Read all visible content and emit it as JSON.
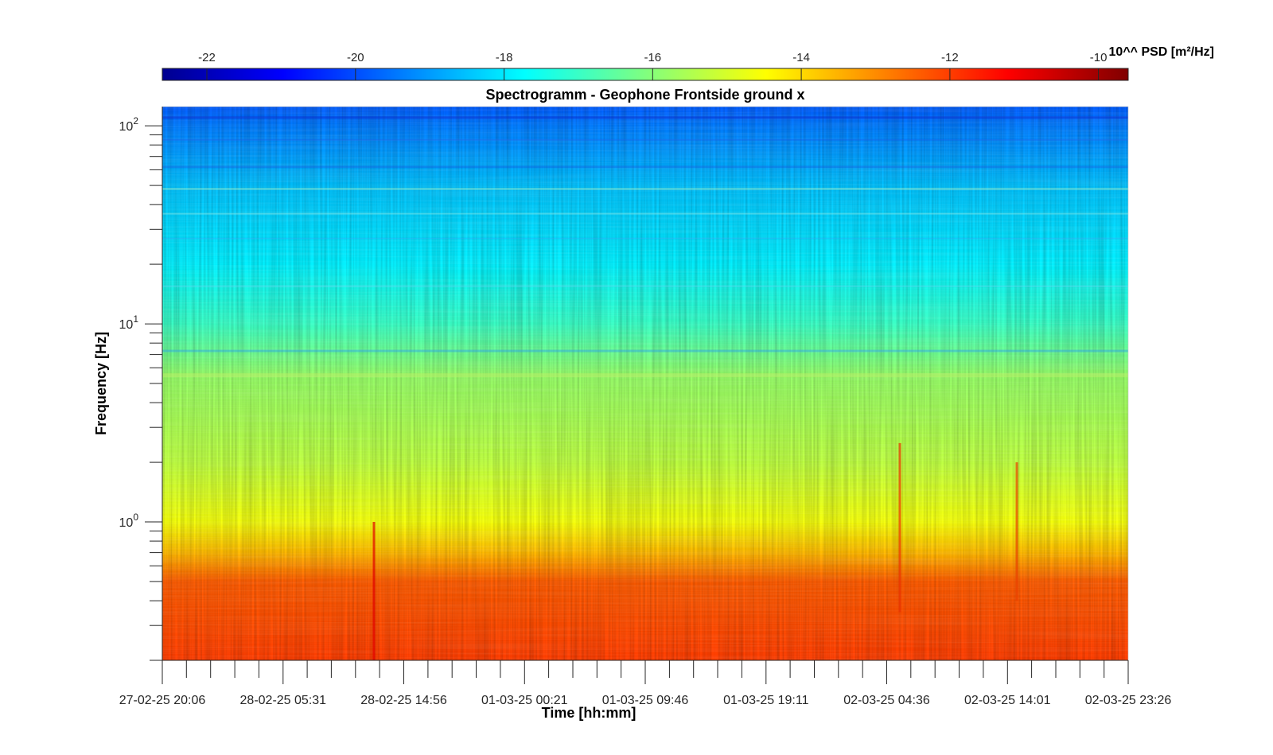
{
  "chart_data": {
    "type": "heatmap",
    "title": "Spectrogramm - Geophone Frontside ground x",
    "xlabel": "Time [hh:mm]",
    "ylabel": "Frequency [Hz]",
    "yscale": "log",
    "ylim": [
      0.2,
      125
    ],
    "x_tick_labels": [
      "27-02-25 20:06",
      "28-02-25 05:31",
      "28-02-25 14:56",
      "01-03-25 00:21",
      "01-03-25 09:46",
      "01-03-25 19:11",
      "02-03-25 04:36",
      "02-03-25 14:01",
      "02-03-25 23:26"
    ],
    "y_ticks": [
      {
        "base": "10",
        "exp": "0",
        "value": 1
      },
      {
        "base": "10",
        "exp": "1",
        "value": 10
      },
      {
        "base": "10",
        "exp": "2",
        "value": 100
      }
    ],
    "colorbar": {
      "label": "10^^ PSD [m²/Hz]",
      "range": [
        -22.6,
        -9.6
      ],
      "ticks": [
        "-22",
        "-20",
        "-18",
        "-16",
        "-14",
        "-12",
        "-10"
      ],
      "tick_values": [
        -22,
        -20,
        -18,
        -16,
        -14,
        -12,
        -10
      ],
      "colormap": "jet",
      "placement": "top"
    },
    "psd_profile_log10": [
      {
        "freq_hz": 0.2,
        "psd_log10": -12.0
      },
      {
        "freq_hz": 0.3,
        "psd_log10": -12.2
      },
      {
        "freq_hz": 0.5,
        "psd_log10": -12.4
      },
      {
        "freq_hz": 0.7,
        "psd_log10": -13.6
      },
      {
        "freq_hz": 1.0,
        "psd_log10": -14.6
      },
      {
        "freq_hz": 2.0,
        "psd_log10": -15.3
      },
      {
        "freq_hz": 3.5,
        "psd_log10": -15.6
      },
      {
        "freq_hz": 5.5,
        "psd_log10": -15.8
      },
      {
        "freq_hz": 10,
        "psd_log10": -17.0
      },
      {
        "freq_hz": 20,
        "psd_log10": -17.9
      },
      {
        "freq_hz": 50,
        "psd_log10": -18.5
      },
      {
        "freq_hz": 100,
        "psd_log10": -19.4
      },
      {
        "freq_hz": 125,
        "psd_log10": -19.8
      }
    ],
    "grid": false
  },
  "colors": {
    "colormap_stops": [
      "#00008f",
      "#0000ff",
      "#00ffff",
      "#ffff00",
      "#ff0000",
      "#800000"
    ]
  }
}
